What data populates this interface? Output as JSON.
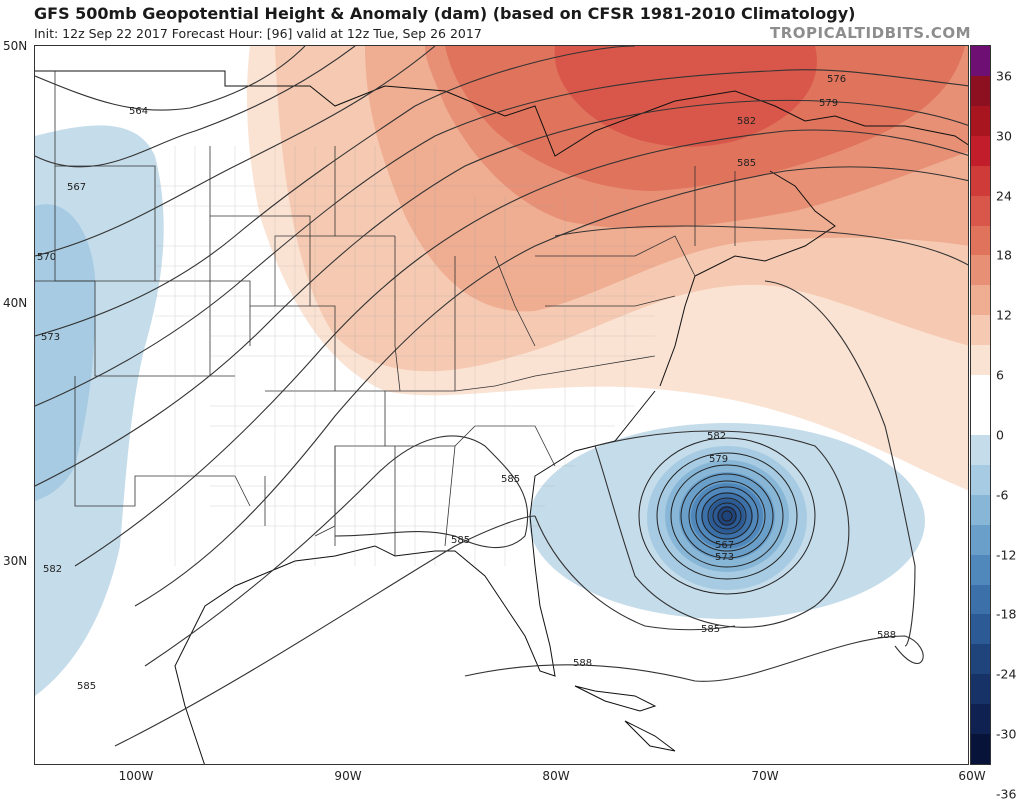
{
  "header": {
    "title": "GFS 500mb Geopotential Height & Anomaly (dam) (based on CFSR 1981-2010 Climatology)",
    "subtitle": "Init: 12z Sep 22 2017   Forecast Hour: [96]   valid at 12z Tue, Sep 26 2017",
    "brand": "TROPICALTIDBITS.COM"
  },
  "map": {
    "lat_labels": [
      "50N",
      "40N",
      "30N"
    ],
    "lon_labels": [
      "100W",
      "90W",
      "80W",
      "70W",
      "60W"
    ],
    "contour_labels": [
      "564",
      "567",
      "570",
      "573",
      "576",
      "579",
      "582",
      "585",
      "588",
      "582",
      "579",
      "567",
      "573",
      "585",
      "585",
      "585",
      "585",
      "588",
      "588",
      "582"
    ]
  },
  "colorbar": {
    "labels": [
      "36",
      "30",
      "24",
      "18",
      "12",
      "6",
      "0",
      "-6",
      "-12",
      "-18",
      "-24",
      "-30",
      "-36"
    ],
    "colors": [
      "#6e0f74",
      "#8c1020",
      "#a8151f",
      "#c21d2a",
      "#cf3b38",
      "#d8574a",
      "#e0735c",
      "#e79075",
      "#efad92",
      "#f6cab2",
      "#fbe3d4",
      "#ffffff",
      "#ffffff",
      "#c5dcea",
      "#a6cbe2",
      "#87b6d7",
      "#6a9fca",
      "#5088bb",
      "#3b70a8",
      "#2b5a94",
      "#1f447c",
      "#173266",
      "#0f2150",
      "#08133a"
    ]
  }
}
